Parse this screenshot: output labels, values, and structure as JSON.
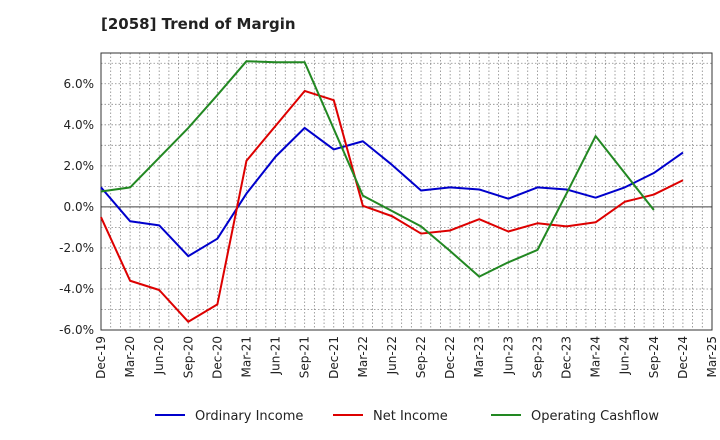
{
  "chart_data": {
    "type": "line",
    "title": "[2058]  Trend of Margin",
    "x": [
      "Dec-19",
      "Mar-20",
      "Jun-20",
      "Sep-20",
      "Dec-20",
      "Mar-21",
      "Jun-21",
      "Sep-21",
      "Dec-21",
      "Mar-22",
      "Jun-22",
      "Sep-22",
      "Dec-22",
      "Mar-23",
      "Jun-23",
      "Sep-23",
      "Dec-23",
      "Mar-24",
      "Jun-24",
      "Sep-24",
      "Dec-24",
      "Mar-25"
    ],
    "ylim": [
      -6,
      7.5
    ],
    "yticks": [
      -6,
      -4,
      -2,
      0,
      2,
      4,
      6
    ],
    "ytick_labels": [
      "-6.0%",
      "-4.0%",
      "-2.0%",
      "0.0%",
      "2.0%",
      "4.0%",
      "6.0%"
    ],
    "grid": true,
    "legend_position": "bottom",
    "series": [
      {
        "name": "Ordinary Income",
        "color": "#0000cc",
        "values": [
          0.95,
          -0.7,
          -0.9,
          -2.4,
          -1.55,
          0.65,
          2.45,
          3.85,
          2.8,
          3.2,
          2.05,
          0.8,
          0.95,
          0.85,
          0.4,
          0.95,
          0.85,
          0.45,
          0.95,
          1.65,
          2.65,
          null
        ]
      },
      {
        "name": "Net Income",
        "color": "#dd0000",
        "values": [
          -0.5,
          -3.6,
          -4.05,
          -5.6,
          -4.75,
          2.25,
          3.95,
          5.65,
          5.2,
          0.05,
          -0.45,
          -1.3,
          -1.15,
          -0.6,
          -1.2,
          -0.8,
          -0.95,
          -0.75,
          0.25,
          0.6,
          1.3,
          null
        ]
      },
      {
        "name": "Operating Cashflow",
        "color": "#228822",
        "values": [
          0.75,
          0.95,
          2.4,
          3.85,
          5.45,
          7.1,
          7.05,
          7.05,
          3.8,
          0.55,
          -0.2,
          -0.95,
          -2.15,
          -3.4,
          -2.7,
          -2.1,
          0.65,
          3.45,
          1.65,
          -0.15,
          null,
          null
        ]
      }
    ]
  }
}
